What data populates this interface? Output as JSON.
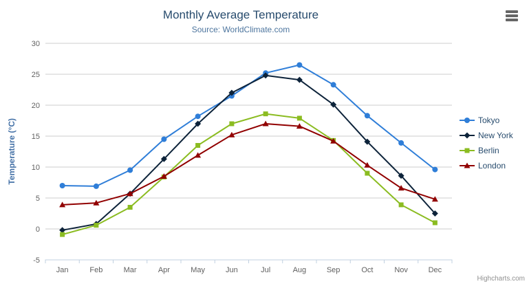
{
  "chart_data": {
    "type": "line",
    "title": "Monthly Average Temperature",
    "subtitle": "Source: WorldClimate.com",
    "categories": [
      "Jan",
      "Feb",
      "Mar",
      "Apr",
      "May",
      "Jun",
      "Jul",
      "Aug",
      "Sep",
      "Oct",
      "Nov",
      "Dec"
    ],
    "xlabel": "",
    "ylabel": "Temperature (°C)",
    "ylim": [
      -5,
      30
    ],
    "ytick_step": 5,
    "grid": true,
    "legend_position": "right",
    "series": [
      {
        "name": "Tokyo",
        "color": "#2f7ed8",
        "marker": "circle",
        "values": [
          7.0,
          6.9,
          9.5,
          14.5,
          18.2,
          21.5,
          25.2,
          26.5,
          23.3,
          18.3,
          13.9,
          9.6
        ]
      },
      {
        "name": "New York",
        "color": "#0d233a",
        "marker": "diamond",
        "values": [
          -0.2,
          0.8,
          5.7,
          11.3,
          17.0,
          22.0,
          24.8,
          24.1,
          20.1,
          14.1,
          8.6,
          2.5
        ]
      },
      {
        "name": "Berlin",
        "color": "#8bbc21",
        "marker": "square",
        "values": [
          -0.9,
          0.6,
          3.5,
          8.4,
          13.5,
          17.0,
          18.6,
          17.9,
          14.3,
          9.0,
          3.9,
          1.0
        ]
      },
      {
        "name": "London",
        "color": "#910000",
        "marker": "triangle",
        "values": [
          3.9,
          4.2,
          5.7,
          8.5,
          11.9,
          15.2,
          17.0,
          16.6,
          14.2,
          10.3,
          6.6,
          4.8
        ]
      }
    ]
  },
  "credits": {
    "label": "Highcharts.com"
  },
  "icons": {
    "menu": "hamburger-three-bars"
  },
  "colors": {
    "title": "#274b6d",
    "subtitle": "#4d759e",
    "axis_title": "#4572a7",
    "axis_labels": "#606060",
    "gridline": "#cccccc",
    "axis_line": "#C0D0E0",
    "legend_text": "#274b6d",
    "credits_text": "#909090",
    "menu_icon": "#666666"
  }
}
